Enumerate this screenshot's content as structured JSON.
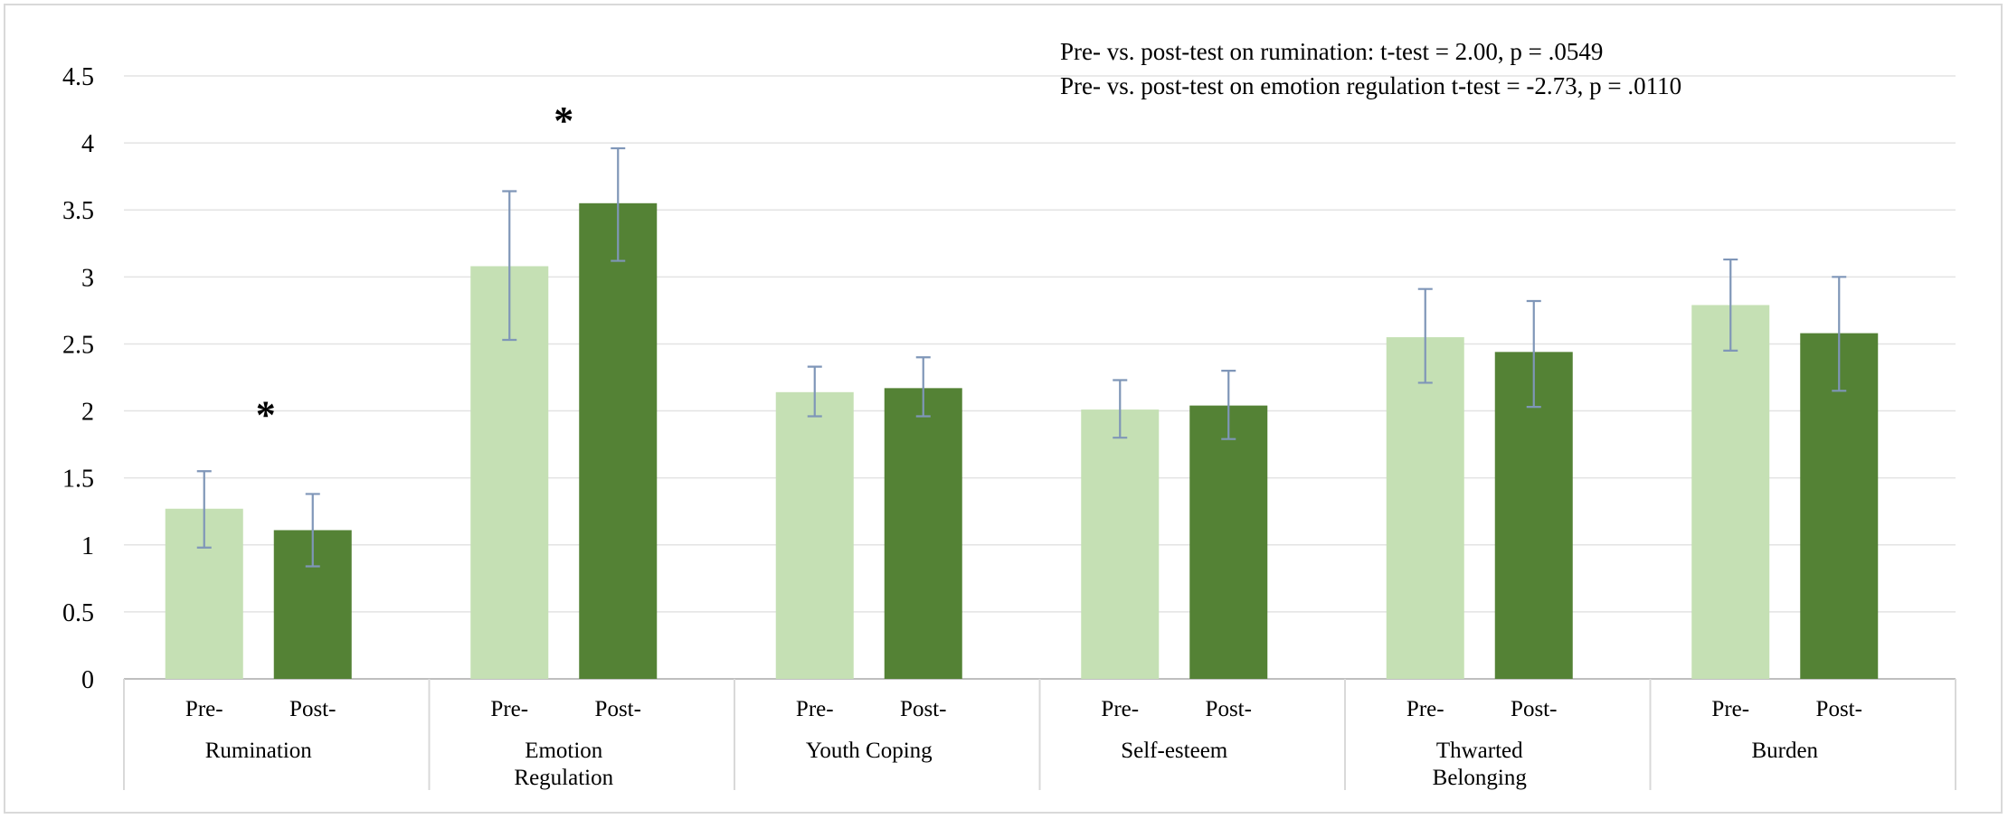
{
  "chart_data": {
    "type": "bar",
    "ylim": [
      0,
      4.5
    ],
    "yticks": [
      "0",
      "0.5",
      "1",
      "1.5",
      "2",
      "2.5",
      "3",
      "3.5",
      "4",
      "4.5"
    ],
    "grid": true,
    "groups": [
      {
        "label_lines": [
          "Rumination"
        ],
        "significant": true,
        "star_over": 0
      },
      {
        "label_lines": [
          "Emotion",
          "Regulation"
        ],
        "significant": true,
        "star_over": 1
      },
      {
        "label_lines": [
          "Youth Coping"
        ],
        "significant": false
      },
      {
        "label_lines": [
          "Self-esteem"
        ],
        "significant": false
      },
      {
        "label_lines": [
          "Thwarted",
          "Belonging"
        ],
        "significant": false
      },
      {
        "label_lines": [
          "Burden"
        ],
        "significant": false
      }
    ],
    "sublabels": [
      "Pre-",
      "Post-"
    ],
    "series": [
      {
        "values": [
          1.27,
          3.08,
          2.14,
          2.01,
          2.55,
          2.79
        ],
        "error_low": [
          0.98,
          2.53,
          1.96,
          1.8,
          2.21,
          2.45
        ],
        "error_high": [
          1.55,
          3.64,
          2.33,
          2.23,
          2.91,
          3.13
        ],
        "color": "#c5e0b4"
      },
      {
        "values": [
          1.11,
          3.55,
          2.17,
          2.04,
          2.44,
          2.58
        ],
        "error_low": [
          0.84,
          3.12,
          1.96,
          1.79,
          2.03,
          2.15
        ],
        "error_high": [
          1.38,
          3.96,
          2.4,
          2.3,
          2.82,
          3.0
        ],
        "color": "#548235"
      }
    ],
    "error_bar_color": "#7f96b8",
    "significance_marker": "*",
    "annotations": [
      "Pre- vs. post-test on rumination: t-test = 2.00, p = .0549",
      "Pre- vs. post-test on emotion regulation t-test = -2.73, p = .0110"
    ]
  }
}
